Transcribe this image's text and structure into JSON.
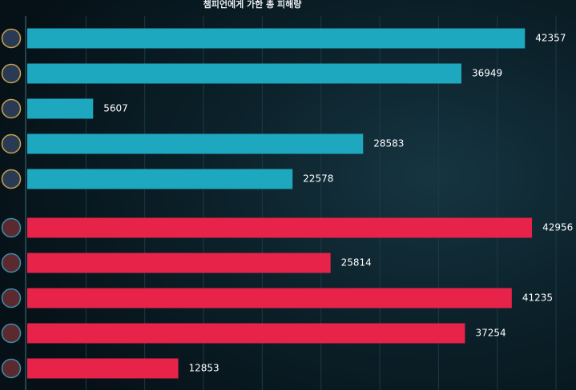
{
  "chart_data": {
    "type": "bar",
    "orientation": "horizontal",
    "title": "챔피언에게 가한 총 피해량",
    "series": [
      {
        "color": "#1ea8bf",
        "values": [
          42357,
          36949,
          5607,
          28583,
          22578
        ]
      },
      {
        "color": "#e8234a",
        "values": [
          42956,
          25814,
          41235,
          37254,
          12853
        ]
      }
    ],
    "xlim": [
      0,
      46700
    ],
    "grid_lines": [
      5000,
      10000,
      15000,
      20000,
      25000,
      30000,
      35000,
      40000,
      45000
    ],
    "grid": true
  }
}
